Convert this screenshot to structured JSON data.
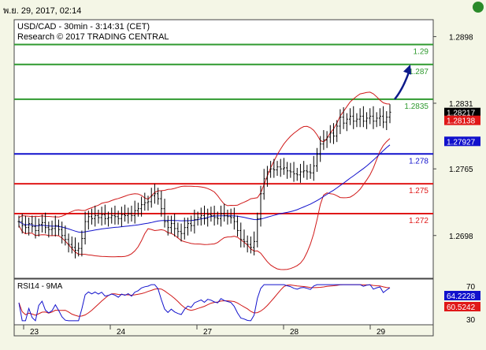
{
  "header": {
    "timestamp": "พ.ย. 29, 2017, 02:14"
  },
  "chart_data": {
    "type": "candlestick",
    "title": "USD/CAD - 30min - 3:14:31 (CET)",
    "subtitle": "Research © 2017 TRADING CENTRAL",
    "ylim": [
      1.2655,
      1.2915
    ],
    "y_ticks": [
      "1.2898",
      "1.2831",
      "1.2765",
      "1.2698"
    ],
    "x_ticks": [
      "23",
      "24",
      "27",
      "28",
      "29"
    ],
    "levels": [
      {
        "label": "1.29",
        "value": 1.289,
        "color": "#2f9a2f"
      },
      {
        "label": "1.287",
        "value": 1.287,
        "color": "#2f9a2f"
      },
      {
        "label": "1.2835",
        "value": 1.2835,
        "color": "#2f9a2f"
      },
      {
        "label": "1.278",
        "value": 1.278,
        "color": "#1111cc"
      },
      {
        "label": "1.275",
        "value": 1.275,
        "color": "#e01818"
      },
      {
        "label": "1.272",
        "value": 1.272,
        "color": "#e01818"
      }
    ],
    "price_tags": [
      {
        "label": "1.28217",
        "value": 1.28217,
        "bg": "#000000",
        "fg": "#ffffff"
      },
      {
        "label": "1.28138",
        "value": 1.28138,
        "bg": "#e01818",
        "fg": "#ffffff"
      },
      {
        "label": "1.27927",
        "value": 1.27927,
        "bg": "#1111cc",
        "fg": "#ffffff"
      }
    ],
    "close": [
      1.2712,
      1.2708,
      1.2706,
      1.271,
      1.2707,
      1.2703,
      1.2709,
      1.2711,
      1.2706,
      1.2704,
      1.2705,
      1.2708,
      1.2704,
      1.2698,
      1.2694,
      1.2689,
      1.2686,
      1.2683,
      1.2685,
      1.2695,
      1.2712,
      1.2717,
      1.2715,
      1.2718,
      1.2716,
      1.2719,
      1.2715,
      1.2716,
      1.2718,
      1.2717,
      1.2715,
      1.2719,
      1.2718,
      1.272,
      1.2718,
      1.2723,
      1.2725,
      1.2729,
      1.2731,
      1.2732,
      1.2738,
      1.274,
      1.2735,
      1.2725,
      1.2712,
      1.2706,
      1.271,
      1.2705,
      1.2702,
      1.27,
      1.2706,
      1.271,
      1.2708,
      1.2714,
      1.2716,
      1.2718,
      1.2715,
      1.2719,
      1.2718,
      1.2716,
      1.2715,
      1.272,
      1.2718,
      1.2717,
      1.2716,
      1.2712,
      1.2703,
      1.2694,
      1.2692,
      1.2689,
      1.2686,
      1.2692,
      1.2715,
      1.274,
      1.2755,
      1.2762,
      1.2765,
      1.2764,
      1.2767,
      1.2765,
      1.2766,
      1.2763,
      1.2762,
      1.276,
      1.2759,
      1.2762,
      1.2763,
      1.2762,
      1.2761,
      1.2768,
      1.278,
      1.279,
      1.2794,
      1.2797,
      1.2801,
      1.2798,
      1.2808,
      1.2817,
      1.2811,
      1.2815,
      1.2818,
      1.2813,
      1.2815,
      1.2818,
      1.2813,
      1.2816,
      1.2818,
      1.2813,
      1.2816,
      1.2818,
      1.2812,
      1.2817,
      1.2822
    ],
    "forecast_arrow": {
      "from_index": 112,
      "from_value": 1.2835,
      "to_value": 1.287
    },
    "rsi": {
      "label": "RSI14 - 9MA",
      "ylim": [
        25,
        75
      ],
      "y_ticks": [
        "70",
        "30"
      ],
      "tags": [
        {
          "label": "64.2228",
          "value": 64.2228,
          "bg": "#1111cc",
          "fg": "#ffffff"
        },
        {
          "label": "60.5242",
          "value": 60.5242,
          "bg": "#e01818",
          "fg": "#ffffff"
        }
      ]
    }
  }
}
